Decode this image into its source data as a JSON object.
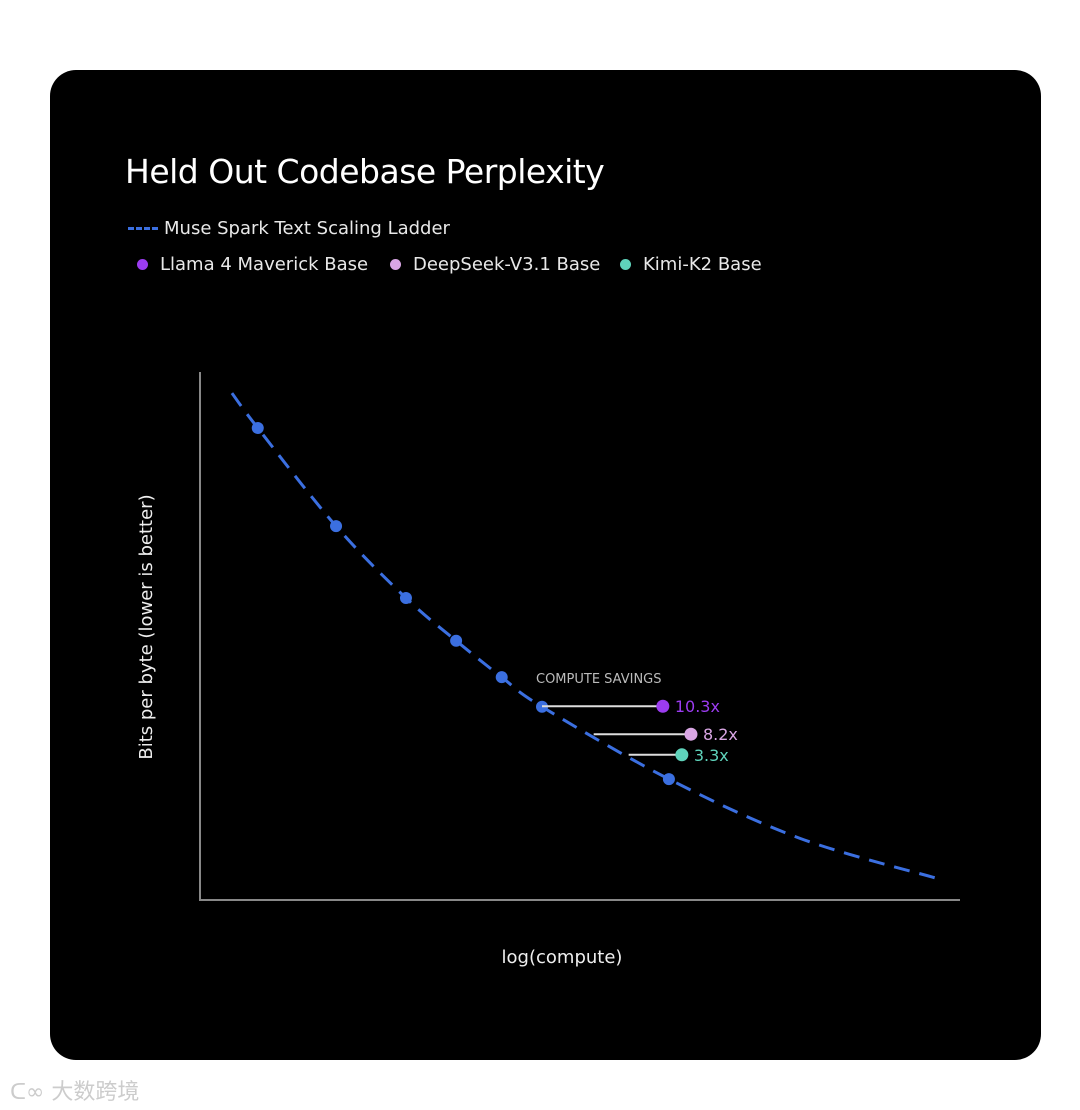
{
  "chart_data": {
    "type": "line",
    "title": "Held Out Codebase Perplexity",
    "xlabel": "log(compute)",
    "ylabel": "Bits per byte (lower is better)",
    "xlim": [
      0,
      100
    ],
    "ylim": [
      0,
      100
    ],
    "grid": false,
    "ticks": "none",
    "legend_placement": "top-left",
    "series": [
      {
        "name": "Muse Spark Text Scaling Ladder",
        "color": "#3b6fe0",
        "style": "dashed",
        "curve": [
          [
            4.2,
            96.0
          ],
          [
            7.6,
            89.4
          ],
          [
            17.9,
            70.8
          ],
          [
            27.1,
            57.2
          ],
          [
            33.7,
            49.1
          ],
          [
            39.7,
            42.2
          ],
          [
            45.0,
            36.6
          ],
          [
            61.7,
            22.9
          ],
          [
            78.9,
            11.7
          ],
          [
            96.7,
            4.2
          ]
        ],
        "points": [
          [
            7.6,
            89.4
          ],
          [
            17.9,
            70.8
          ],
          [
            27.1,
            57.2
          ],
          [
            33.7,
            49.1
          ],
          [
            39.7,
            42.2
          ],
          [
            45.0,
            36.6
          ],
          [
            61.7,
            22.9
          ]
        ]
      },
      {
        "name": "Llama 4 Maverick Base",
        "color": "#9b3cf0",
        "point": [
          60.9,
          36.7
        ],
        "ladder_match_x": 45.0,
        "savings": "10.3x"
      },
      {
        "name": "DeepSeek-V3.1 Base",
        "color": "#d9a6e4",
        "point": [
          64.6,
          31.4
        ],
        "ladder_match_x": 51.8,
        "savings": "8.2x"
      },
      {
        "name": "Kimi-K2 Base",
        "color": "#5fd3bb",
        "point": [
          63.4,
          27.5
        ],
        "ladder_match_x": 56.4,
        "savings": "3.3x"
      }
    ],
    "annotation": "COMPUTE SAVINGS"
  },
  "watermark": "大数跨境"
}
